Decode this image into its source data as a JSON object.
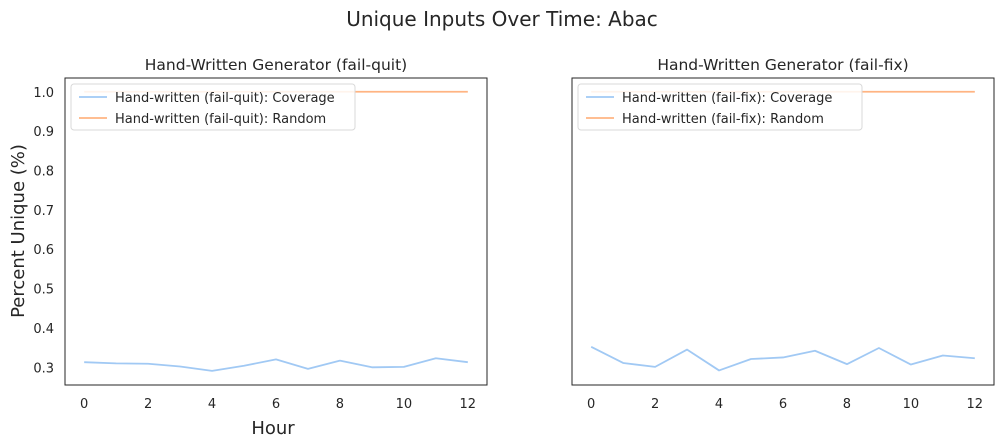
{
  "chart_data": {
    "suptitle": "Unique Inputs Over Time: Abac",
    "xlabel": "Hour",
    "ylabel": "Percent Unique (%)",
    "type": "line",
    "subplots": [
      {
        "title": "Hand-Written Generator (fail-quit)",
        "xlim": [
          -0.6,
          12.6
        ],
        "ylim": [
          0.255,
          1.035
        ],
        "xticks": [
          0,
          2,
          4,
          6,
          8,
          10,
          12
        ],
        "yticks": [
          0.3,
          0.4,
          0.5,
          0.6,
          0.7,
          0.8,
          0.9,
          1.0
        ],
        "grid": false,
        "legend_position": "upper-left",
        "series": [
          {
            "name": "Hand-written (fail-quit): Coverage",
            "color": "#a1c9f4",
            "x": [
              0,
              1,
              2,
              3,
              4,
              5,
              6,
              7,
              8,
              9,
              10,
              11,
              12
            ],
            "y": [
              0.313,
              0.31,
              0.309,
              0.302,
              0.291,
              0.304,
              0.32,
              0.296,
              0.317,
              0.3,
              0.301,
              0.323,
              0.313
            ]
          },
          {
            "name": "Hand-written (fail-quit): Random",
            "color": "#ffb482",
            "x": [
              0,
              1,
              2,
              3,
              4,
              5,
              6,
              7,
              8,
              9,
              10,
              11,
              12
            ],
            "y": [
              1.0,
              1.0,
              1.0,
              1.0,
              1.0,
              1.0,
              1.0,
              1.0,
              1.0,
              1.0,
              1.0,
              1.0,
              1.0
            ]
          }
        ]
      },
      {
        "title": "Hand-Written Generator (fail-fix)",
        "xlim": [
          -0.6,
          12.6
        ],
        "ylim": [
          0.255,
          1.035
        ],
        "xticks": [
          0,
          2,
          4,
          6,
          8,
          10,
          12
        ],
        "yticks": [
          0.3,
          0.4,
          0.5,
          0.6,
          0.7,
          0.8,
          0.9,
          1.0
        ],
        "grid": false,
        "legend_position": "upper-left",
        "series": [
          {
            "name": "Hand-written (fail-fix): Coverage",
            "color": "#a1c9f4",
            "x": [
              0,
              1,
              2,
              3,
              4,
              5,
              6,
              7,
              8,
              9,
              10,
              11,
              12
            ],
            "y": [
              0.352,
              0.311,
              0.301,
              0.345,
              0.292,
              0.321,
              0.325,
              0.342,
              0.308,
              0.349,
              0.307,
              0.33,
              0.323
            ]
          },
          {
            "name": "Hand-written (fail-fix): Random",
            "color": "#ffb482",
            "x": [
              0,
              1,
              2,
              3,
              4,
              5,
              6,
              7,
              8,
              9,
              10,
              11,
              12
            ],
            "y": [
              1.0,
              1.0,
              1.0,
              1.0,
              1.0,
              1.0,
              1.0,
              1.0,
              1.0,
              1.0,
              1.0,
              1.0,
              1.0
            ]
          }
        ]
      }
    ]
  }
}
